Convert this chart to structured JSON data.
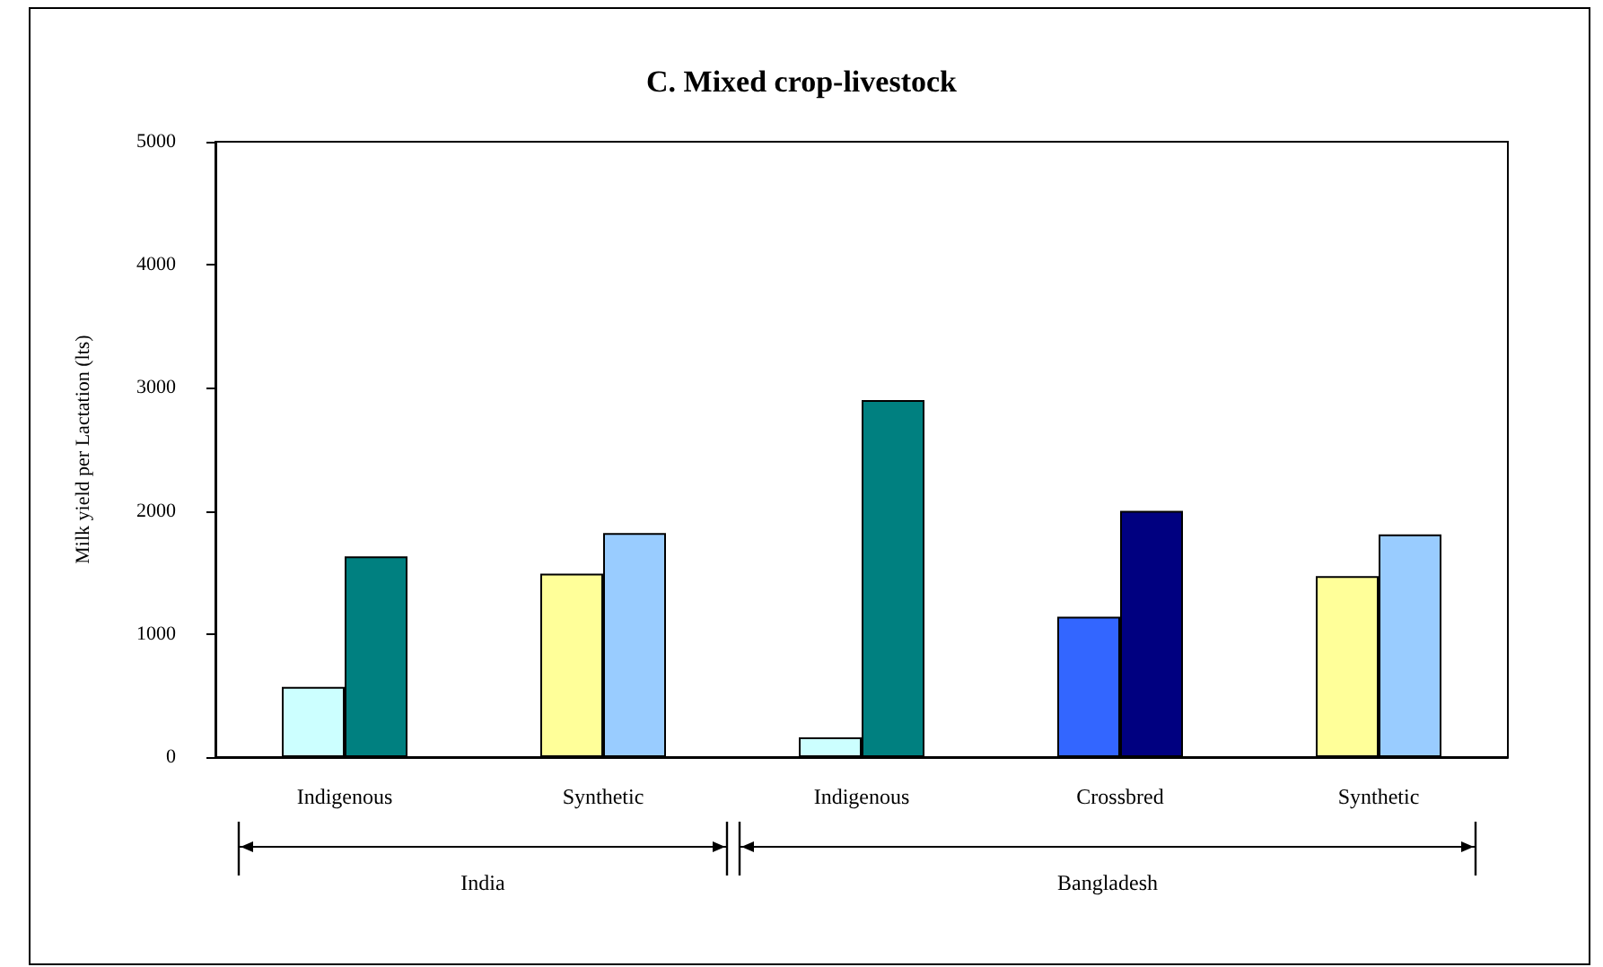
{
  "chart_data": {
    "type": "bar",
    "title": "C. Mixed crop-livestock",
    "ylabel": "Milk yield per Lactation (lts)",
    "categories": [
      "Indigenous",
      "Synthetic",
      "Indigenous",
      "Crossbred",
      "Synthetic"
    ],
    "series": [
      {
        "colors": [
          "#ccffff",
          "#ffff99",
          "#ccffff",
          "#3366ff",
          "#ffff99"
        ],
        "values": [
          570,
          1490,
          160,
          1140,
          1470
        ]
      },
      {
        "colors": [
          "#008080",
          "#99ccff",
          "#008080",
          "#000080",
          "#99ccff"
        ],
        "values": [
          1630,
          1820,
          2900,
          2000,
          1810
        ]
      }
    ],
    "ylim": [
      0,
      5000
    ],
    "yticks": [
      0,
      1000,
      2000,
      3000,
      4000,
      5000
    ],
    "grid": false,
    "annotations": [
      "India",
      "Bangladesh"
    ]
  }
}
